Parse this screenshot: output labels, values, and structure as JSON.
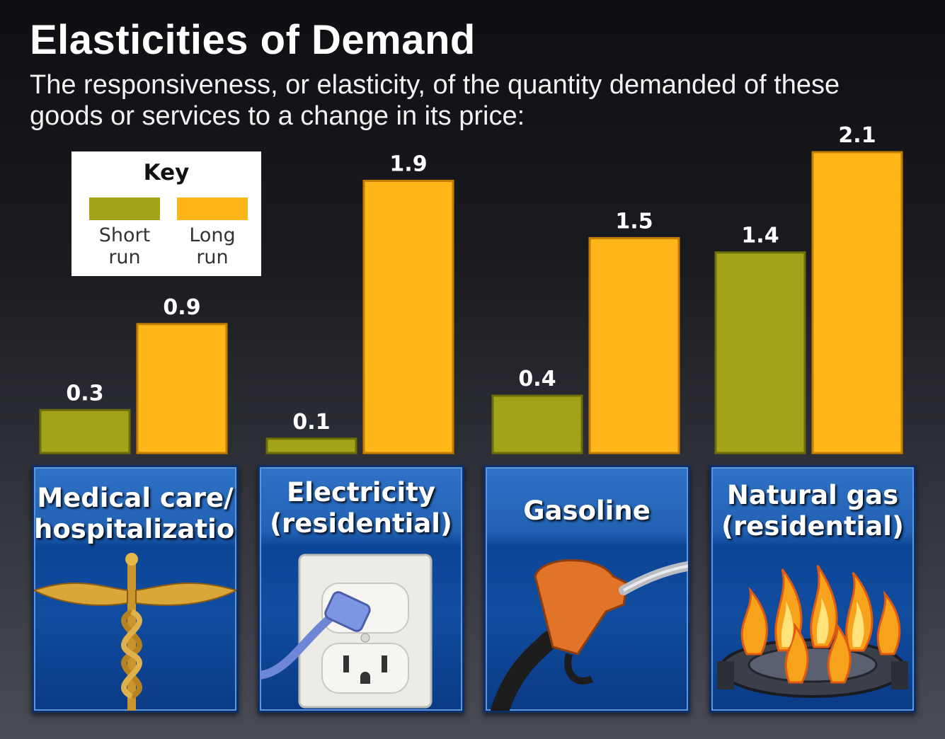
{
  "title": "Elasticities of Demand",
  "subtitle": "The responsiveness, or elasticity, of the quantity demanded of these goods or services to a change in its price:",
  "legend": {
    "title": "Key",
    "items": [
      {
        "label": "Short run",
        "color": "#a3a31a"
      },
      {
        "label": "Long run",
        "color": "#ffb619"
      }
    ]
  },
  "colors": {
    "short_run": "#a3a31a",
    "long_run": "#ffb619",
    "panel": "#1b5cb0"
  },
  "chart_data": {
    "type": "bar",
    "title": "Elasticities of Demand",
    "categories": [
      "Medical care/ hospitalization",
      "Electricity (residential)",
      "Gasoline",
      "Natural gas (residential)"
    ],
    "series": [
      {
        "name": "Short run",
        "values": [
          0.3,
          0.1,
          0.4,
          1.4
        ]
      },
      {
        "name": "Long run",
        "values": [
          0.9,
          1.9,
          1.5,
          2.1
        ]
      }
    ],
    "value_labels": {
      "short_run": [
        "0.3",
        "0.1",
        "0.4",
        "1.4"
      ],
      "long_run": [
        "0.9",
        "1.9",
        "1.5",
        "2.1"
      ]
    },
    "ylim": [
      0,
      2.1
    ],
    "grid": false,
    "legend_position": "top-left"
  },
  "panels": [
    {
      "lines": [
        "Medical care/",
        "hospitalization"
      ],
      "icon": "caduceus-icon"
    },
    {
      "lines": [
        "Electricity",
        "(residential)"
      ],
      "icon": "electrical-outlet-icon"
    },
    {
      "lines": [
        "Gasoline"
      ],
      "icon": "gas-pump-nozzle-icon"
    },
    {
      "lines": [
        "Natural gas",
        "(residential)"
      ],
      "icon": "gas-burner-flame-icon"
    }
  ]
}
